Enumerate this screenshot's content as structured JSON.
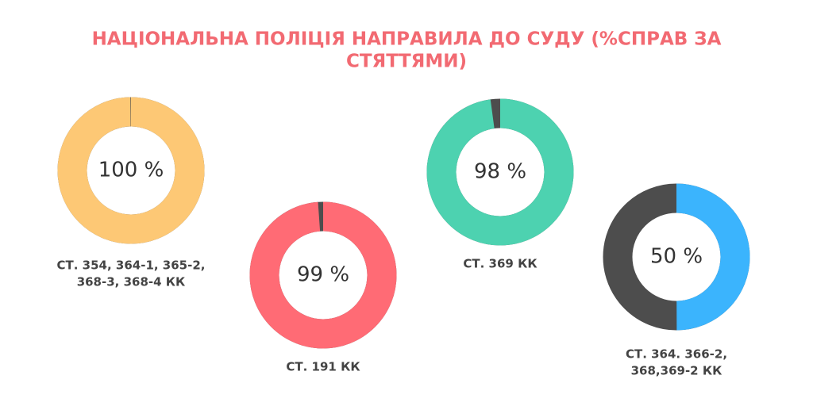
{
  "title": [
    "НАЦІОНАЛЬНА ПОЛІЦІЯ НАПРАВИЛА ДО СУДУ (%СПРАВ ЗА",
    "СТЯТТЯМИ)"
  ],
  "chart_data": [
    {
      "type": "donut",
      "values": [
        100
      ],
      "value_labels": [
        "100 %"
      ],
      "label": [
        "СТ. 354, 364-1, 365-2,",
        "368-3, 368-4 КК"
      ],
      "color": "#fdc875",
      "track_color": "#4d4d4d"
    },
    {
      "type": "donut",
      "values": [
        99
      ],
      "value_labels": [
        "99 %"
      ],
      "label": [
        "СТ. 191 КК"
      ],
      "color": "#ff6b75",
      "track_color": "#4d4d4d"
    },
    {
      "type": "donut",
      "values": [
        98
      ],
      "value_labels": [
        "98 %"
      ],
      "label": [
        "СТ. 369 КК"
      ],
      "color": "#4dd2b0",
      "track_color": "#4d4d4d"
    },
    {
      "type": "donut",
      "values": [
        50
      ],
      "value_labels": [
        "50 %"
      ],
      "label": [
        "СТ. 364. 366-2,",
        "368,369-2 КК"
      ],
      "color": "#3bb4fd",
      "track_color": "#4d4d4d"
    }
  ]
}
